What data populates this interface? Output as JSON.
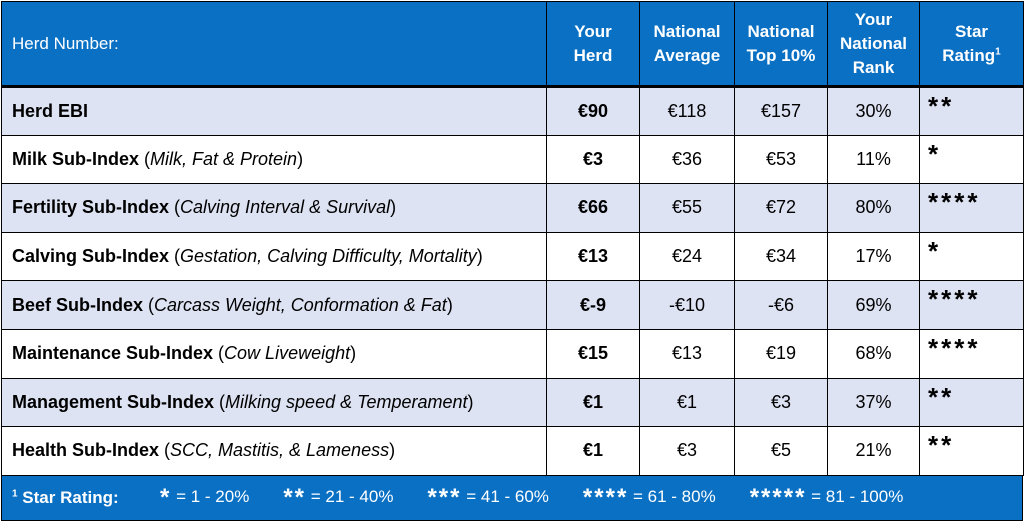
{
  "header": {
    "herd_number_label": "Herd Number:",
    "col_your_herd": [
      "Your",
      "Herd"
    ],
    "col_national_average": [
      "National",
      "Average"
    ],
    "col_national_top10": [
      "National",
      "Top 10%"
    ],
    "col_national_rank": [
      "Your",
      "National",
      "Rank"
    ],
    "col_star_rating": [
      "Star",
      "Rating"
    ],
    "star_rating_footnote_mark": "1"
  },
  "rows": [
    {
      "name": "Herd EBI",
      "detail": "",
      "your_herd": "€90",
      "national_average": "€118",
      "national_top10": "€157",
      "rank": "30%",
      "stars": "**"
    },
    {
      "name": "Milk Sub-Index",
      "detail": "Milk, Fat & Protein",
      "your_herd": "€3",
      "national_average": "€36",
      "national_top10": "€53",
      "rank": "11%",
      "stars": "*"
    },
    {
      "name": "Fertility Sub-Index",
      "detail": "Calving Interval & Survival",
      "your_herd": "€66",
      "national_average": "€55",
      "national_top10": "€72",
      "rank": "80%",
      "stars": "****"
    },
    {
      "name": "Calving Sub-Index",
      "detail": "Gestation, Calving Difficulty, Mortality",
      "your_herd": "€13",
      "national_average": "€24",
      "national_top10": "€34",
      "rank": "17%",
      "stars": "*"
    },
    {
      "name": "Beef Sub-Index",
      "detail": "Carcass Weight, Conformation & Fat",
      "your_herd": "€-9",
      "national_average": "-€10",
      "national_top10": "-€6",
      "rank": "69%",
      "stars": "****"
    },
    {
      "name": "Maintenance Sub-Index",
      "detail": "Cow Liveweight",
      "your_herd": "€15",
      "national_average": "€13",
      "national_top10": "€19",
      "rank": "68%",
      "stars": "****"
    },
    {
      "name": "Management Sub-Index",
      "detail": "Milking speed & Temperament",
      "your_herd": "€1",
      "national_average": "€1",
      "national_top10": "€3",
      "rank": "37%",
      "stars": "**"
    },
    {
      "name": "Health Sub-Index",
      "detail": "SCC, Mastitis, & Lameness",
      "your_herd": "€1",
      "national_average": "€3",
      "national_top10": "€5",
      "rank": "21%",
      "stars": "**"
    }
  ],
  "footer": {
    "footnote_mark": "1",
    "label": "Star Rating:",
    "legend": [
      {
        "stars": "*",
        "range": "= 1 - 20%"
      },
      {
        "stars": "**",
        "range": "= 21 - 40%"
      },
      {
        "stars": "***",
        "range": "= 41 - 60%"
      },
      {
        "stars": "****",
        "range": "= 61 - 80%"
      },
      {
        "stars": "*****",
        "range": "= 81 - 100%"
      }
    ]
  },
  "colors": {
    "header_blue": "#0a70c4",
    "band_light": "#dde3f3",
    "text_white": "#ffffff"
  }
}
